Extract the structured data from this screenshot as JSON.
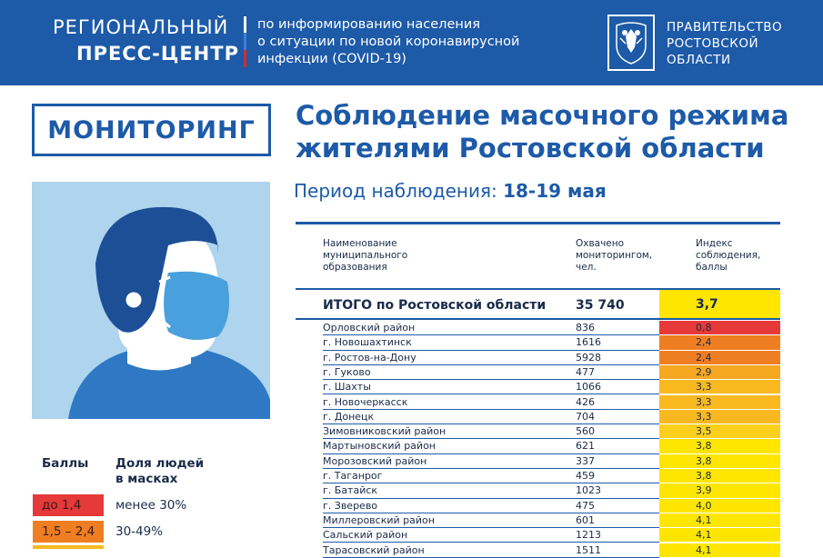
{
  "header": {
    "brand_line1": "РЕГИОНАЛЬНЫЙ",
    "brand_line2": "ПРЕСС-ЦЕНТР",
    "subtitle_lines": [
      "по информированию населения",
      "о ситуации по новой коронавирусной",
      "инфекции (COVID-19)"
    ],
    "gov_lines": [
      "ПРАВИТЕЛЬСТВО",
      "РОСТОВСКОЙ",
      "ОБЛАСТИ"
    ]
  },
  "monitoring_label": "МОНИТОРИНГ",
  "title_lines": [
    "Соблюдение масочного режима",
    "жителями Ростовской области"
  ],
  "period": {
    "label": "Период наблюдения:",
    "value": "18-19 мая"
  },
  "table": {
    "headers": [
      [
        "Наименование",
        "муниципального",
        "образования"
      ],
      [
        "Охвачено",
        "мониторингом,",
        "чел."
      ],
      [
        "Индекс",
        "соблюдения,",
        "баллы"
      ]
    ],
    "total": {
      "name": "ИТОГО по Ростовской области",
      "covered": "35 740",
      "index": "3,7",
      "color": "#ffe600"
    },
    "rows": [
      {
        "name": "Орловский район",
        "covered": "836",
        "index": "0,8",
        "color": "#e63939"
      },
      {
        "name": "г. Новошахтинск",
        "covered": "1616",
        "index": "2,4",
        "color": "#ef7e22"
      },
      {
        "name": "г. Ростов-на-Дону",
        "covered": "5928",
        "index": "2,4",
        "color": "#ef7e22"
      },
      {
        "name": "г. Гуково",
        "covered": "477",
        "index": "2,9",
        "color": "#f6a821"
      },
      {
        "name": "г. Шахты",
        "covered": "1066",
        "index": "3,3",
        "color": "#f8b820"
      },
      {
        "name": "г. Новочеркасск",
        "covered": "426",
        "index": "3,3",
        "color": "#f8b820"
      },
      {
        "name": "г. Донецк",
        "covered": "704",
        "index": "3,3",
        "color": "#f8b820"
      },
      {
        "name": "Зимовниковский район",
        "covered": "560",
        "index": "3,5",
        "color": "#fbd01c"
      },
      {
        "name": "Мартыновский район",
        "covered": "621",
        "index": "3,8",
        "color": "#ffe600"
      },
      {
        "name": "Морозовский район",
        "covered": "337",
        "index": "3,8",
        "color": "#ffe600"
      },
      {
        "name": "г. Таганрог",
        "covered": "459",
        "index": "3,8",
        "color": "#ffe600"
      },
      {
        "name": "г. Батайск",
        "covered": "1023",
        "index": "3,9",
        "color": "#ffe600"
      },
      {
        "name": "г. Зверево",
        "covered": "475",
        "index": "4,0",
        "color": "#ffe600"
      },
      {
        "name": "Миллеровский район",
        "covered": "601",
        "index": "4,1",
        "color": "#ffe600"
      },
      {
        "name": "Сальский район",
        "covered": "1213",
        "index": "4,1",
        "color": "#ffe600"
      },
      {
        "name": "Тарасовский район",
        "covered": "1511",
        "index": "4,1",
        "color": "#ffe600"
      }
    ]
  },
  "legend": {
    "header_score": "Баллы",
    "header_share": [
      "Доля людей",
      "в масках"
    ],
    "items": [
      {
        "range": "до 1,4",
        "share": "менее 30%",
        "color": "#e63939"
      },
      {
        "range": "1,5 – 2,4",
        "share": "30-49%",
        "color": "#ef7e22"
      },
      {
        "range": "",
        "share": "",
        "color": "#f8b820"
      }
    ]
  }
}
